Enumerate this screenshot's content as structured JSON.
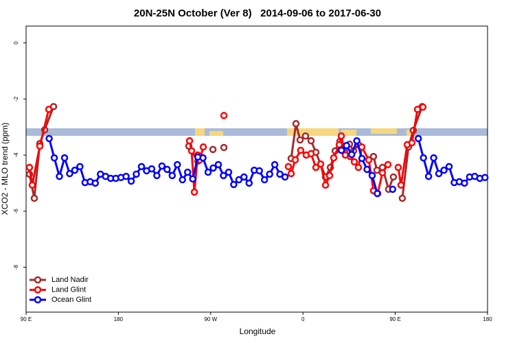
{
  "chart_data": {
    "type": "line",
    "title": "20N-25N October (Ver 8)   2014-09-06 to 2017-06-30",
    "xlabel": "Longitude",
    "ylabel": "XCO2 - MLO trend (ppm)",
    "xlim": [
      90,
      540
    ],
    "ylim": [
      -9.6,
      0.6
    ],
    "xticks": [
      {
        "value": 90,
        "label": "90 E"
      },
      180,
      {
        "value": 270,
        "label": "90 W"
      },
      {
        "value": 360,
        "label": "0"
      },
      {
        "value": 450,
        "label": "90 E"
      },
      {
        "value": 540,
        "label": "180"
      }
    ],
    "yticks": [
      0,
      -2,
      -4,
      -6,
      -8
    ],
    "legend": "bottom-left",
    "series": [
      {
        "name": "Land Nadir",
        "color": "#a52a2a",
        "x": [
          93.3,
          98,
          103.4,
          108.1,
          116.8,
          null,
          248.7,
          257.4,
          null,
          272.2,
          null,
          282.9,
          null,
          348.5,
          353.2,
          357.2,
          362.5,
          367.9,
          372.6,
          382,
          386.7,
          391.4,
          396,
          400.7,
          405.4,
          409.4,
          414.1,
          null,
          428.8,
          432.2,
          437.5,
          443.5,
          448.2,
          null,
          456.9,
          462.9,
          467.6,
          476.3
        ],
        "values": [
          -4.68,
          -5.54,
          -3.59,
          -3.1,
          -2.27,
          null,
          -3.68,
          -4.22,
          null,
          -3.8,
          null,
          -3.73,
          null,
          -4.12,
          -2.88,
          -3.46,
          -3.32,
          -3.49,
          -3.9,
          -4.78,
          -4.44,
          -3.85,
          -3.51,
          -3.9,
          -3.61,
          -3.85,
          -3.63,
          null,
          -4.05,
          -4.54,
          -4.44,
          -5.22,
          -4.78,
          null,
          -5.54,
          -3.71,
          -3.12,
          -2.27
        ]
      },
      {
        "name": "Land Glint",
        "color": "#ff0000",
        "x": [
          93.3,
          96,
          103.4,
          112.1,
          null,
          249.4,
          251.4,
          254.1,
          257.4,
          259.5,
          262.8,
          null,
          282.9,
          null,
          345.8,
          348.5,
          352.5,
          357.8,
          363.2,
          367.9,
          372.6,
          377.3,
          382,
          386,
          390,
          395.4,
          397.4,
          401.4,
          406.1,
          410.1,
          414.1,
          417.4,
          424.2,
          428.8,
          432.9,
          437.5,
          442.9,
          null,
          452.9,
          455.6,
          461.7,
          466.3,
          471.7,
          477.0
        ],
        "values": [
          -4.44,
          -5.07,
          -3.68,
          -2.37,
          null,
          -3.49,
          -3.85,
          -5.32,
          -4.0,
          -4.17,
          -3.71,
          null,
          -2.59,
          null,
          -4.41,
          -4.66,
          -4.17,
          -3.83,
          -4.0,
          -3.95,
          -4.44,
          -4.32,
          -5.07,
          -4.73,
          -4.1,
          -3.63,
          -3.32,
          -4.0,
          -4.05,
          -4.24,
          -4.44,
          -3.71,
          -4.17,
          -5.27,
          -5.37,
          -4.63,
          -4.34,
          null,
          -4.44,
          -5.07,
          -3.63,
          -3.56,
          -2.37,
          -2.29
        ]
      },
      {
        "name": "Ocean Glint",
        "color": "#0000ff",
        "x": [
          112.5,
          117.5,
          122.5,
          127.5,
          132.5,
          137.5,
          142.5,
          147.5,
          152.5,
          157.5,
          162.5,
          167.5,
          172.5,
          177.5,
          182.5,
          187.5,
          192.5,
          197.5,
          202.5,
          207.5,
          212.5,
          217.5,
          222.5,
          227.5,
          232.5,
          237.5,
          242.5,
          247.5,
          252.5,
          257.5,
          262.5,
          267.5,
          272.5,
          277.5,
          282.5,
          287.5,
          292.5,
          297.5,
          302.5,
          307.5,
          312.5,
          317.5,
          322.5,
          327.5,
          332.5,
          337.5,
          342.5,
          null,
          397.5,
          402.5,
          407.5,
          412.5,
          417.5,
          422.5,
          427.5,
          432.5,
          null,
          447.5,
          null,
          472.5,
          477.5,
          482.5,
          487.5,
          492.5,
          497.5,
          502.5,
          507.5,
          512.5,
          517.5,
          522.5,
          527.5,
          532.5,
          537.5
        ],
        "values": [
          -3.41,
          -4.1,
          -4.76,
          -4.1,
          -4.66,
          -4.54,
          -4.41,
          -4.98,
          -4.95,
          -5.0,
          -4.68,
          -4.76,
          -4.83,
          -4.83,
          -4.8,
          -4.76,
          -4.93,
          -4.68,
          -4.41,
          -4.56,
          -4.49,
          -4.73,
          -4.39,
          -4.51,
          -4.73,
          -4.34,
          -4.88,
          -4.61,
          -4.85,
          -4.07,
          -4.1,
          -4.61,
          -4.46,
          -4.34,
          -4.73,
          -4.61,
          -5.05,
          -4.88,
          -4.78,
          -5.0,
          -4.54,
          -4.56,
          -4.88,
          -4.68,
          -4.34,
          -4.68,
          -4.78,
          null,
          -3.83,
          -3.66,
          -3.98,
          -3.49,
          -4.12,
          -4.51,
          -4.73,
          -5.37,
          null,
          -5.22,
          null,
          -3.41,
          -4.1,
          -4.76,
          -4.1,
          -4.66,
          -4.54,
          -4.41,
          -4.98,
          -4.95,
          -5.0,
          -4.78,
          -4.76,
          -4.83,
          -4.8
        ]
      }
    ]
  }
}
